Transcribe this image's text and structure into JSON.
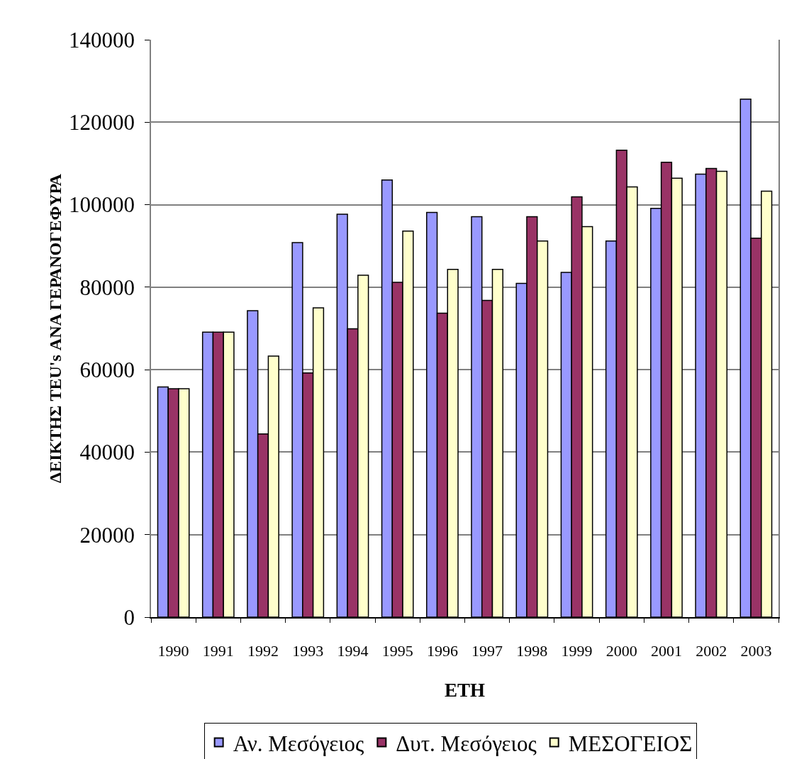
{
  "chart_data": {
    "type": "bar",
    "xlabel": "ΕΤΗ",
    "ylabel": "ΔΕΙΚΤΗΣ TEU's ΑΝΑ ΓΕΡΑΝΟΓΕΦΥΡΑ",
    "categories": [
      "1990",
      "1991",
      "1992",
      "1993",
      "1994",
      "1995",
      "1996",
      "1997",
      "1998",
      "1999",
      "2000",
      "2001",
      "2002",
      "2003"
    ],
    "series": [
      {
        "name": "Αν. Μεσόγειος",
        "color": "#9999ff",
        "values": [
          55800,
          69100,
          74300,
          90800,
          97700,
          106000,
          98100,
          97100,
          80900,
          83600,
          91200,
          99100,
          107400,
          125600
        ]
      },
      {
        "name": "Δυτ. Μεσόγειος",
        "color": "#993366",
        "values": [
          55400,
          69100,
          44400,
          59200,
          69900,
          81200,
          73700,
          76800,
          97100,
          101900,
          113200,
          110300,
          108800,
          91900
        ]
      },
      {
        "name": "ΜΕΣΟΓΕΙΟΣ",
        "color": "#ffffcc",
        "values": [
          55400,
          69100,
          63300,
          75000,
          82900,
          93600,
          84300,
          84300,
          91200,
          94700,
          104300,
          106400,
          108100,
          103300
        ]
      }
    ],
    "ylim": [
      0,
      140000
    ],
    "yticks": [
      0,
      20000,
      40000,
      60000,
      80000,
      100000,
      120000,
      140000
    ],
    "grid": "y",
    "legend": "bottom"
  }
}
